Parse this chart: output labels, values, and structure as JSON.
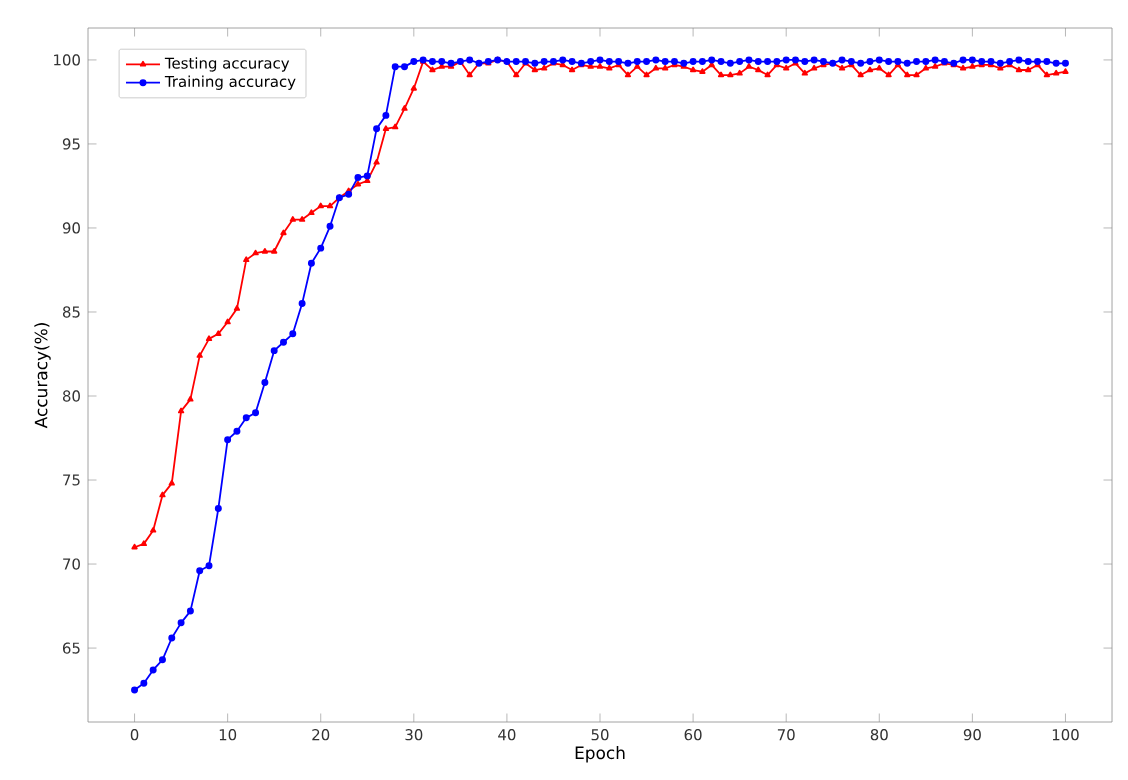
{
  "chart_data": {
    "type": "line",
    "xlabel": "Epoch",
    "ylabel": "Accuracy(%)",
    "x": [
      0,
      1,
      2,
      3,
      4,
      5,
      6,
      7,
      8,
      9,
      10,
      11,
      12,
      13,
      14,
      15,
      16,
      17,
      18,
      19,
      20,
      21,
      22,
      23,
      24,
      25,
      26,
      27,
      28,
      29,
      30,
      31,
      32,
      33,
      34,
      35,
      36,
      37,
      38,
      39,
      40,
      41,
      42,
      43,
      44,
      45,
      46,
      47,
      48,
      49,
      50,
      51,
      52,
      53,
      54,
      55,
      56,
      57,
      58,
      59,
      60,
      61,
      62,
      63,
      64,
      65,
      66,
      67,
      68,
      69,
      70,
      71,
      72,
      73,
      74,
      75,
      76,
      77,
      78,
      79,
      80,
      81,
      82,
      83,
      84,
      85,
      86,
      87,
      88,
      89,
      90,
      91,
      92,
      93,
      94,
      95,
      96,
      97,
      98,
      99,
      100
    ],
    "series": [
      {
        "name": "Testing accuracy",
        "color": "#ff0000",
        "marker": "triangle",
        "values": [
          71.0,
          71.2,
          72.0,
          74.1,
          74.8,
          79.1,
          79.8,
          82.4,
          83.4,
          83.7,
          84.4,
          85.2,
          88.1,
          88.5,
          88.6,
          88.6,
          89.7,
          90.5,
          90.5,
          90.9,
          91.3,
          91.3,
          91.8,
          92.2,
          92.6,
          92.8,
          93.9,
          95.9,
          96.0,
          97.1,
          98.3,
          99.9,
          99.4,
          99.6,
          99.6,
          99.9,
          99.1,
          99.8,
          99.8,
          100,
          99.9,
          99.1,
          99.8,
          99.4,
          99.5,
          99.8,
          99.7,
          99.4,
          99.7,
          99.6,
          99.6,
          99.5,
          99.7,
          99.1,
          99.6,
          99.1,
          99.5,
          99.5,
          99.7,
          99.6,
          99.4,
          99.3,
          99.7,
          99.1,
          99.1,
          99.2,
          99.6,
          99.4,
          99.1,
          99.7,
          99.5,
          99.8,
          99.2,
          99.5,
          99.7,
          99.8,
          99.5,
          99.7,
          99.1,
          99.4,
          99.5,
          99.1,
          99.7,
          99.1,
          99.1,
          99.5,
          99.6,
          99.8,
          99.7,
          99.5,
          99.6,
          99.7,
          99.7,
          99.5,
          99.7,
          99.4,
          99.4,
          99.7,
          99.1,
          99.2,
          99.3
        ]
      },
      {
        "name": "Training accuracy",
        "color": "#0000ff",
        "marker": "circle",
        "values": [
          62.5,
          62.9,
          63.7,
          64.3,
          65.6,
          66.5,
          67.2,
          69.6,
          69.9,
          73.3,
          77.4,
          77.9,
          78.7,
          79.0,
          80.8,
          82.7,
          83.2,
          83.7,
          85.5,
          87.9,
          88.8,
          90.1,
          91.8,
          92.0,
          93.0,
          93.1,
          95.9,
          96.7,
          99.6,
          99.6,
          99.9,
          100,
          99.9,
          99.9,
          99.8,
          99.9,
          100,
          99.8,
          99.9,
          100,
          99.9,
          99.9,
          99.9,
          99.8,
          99.9,
          99.9,
          100,
          99.9,
          99.8,
          99.9,
          100,
          99.9,
          99.9,
          99.8,
          99.9,
          99.9,
          100,
          99.9,
          99.9,
          99.8,
          99.9,
          99.9,
          100,
          99.9,
          99.8,
          99.9,
          100,
          99.9,
          99.9,
          99.9,
          100,
          100,
          99.9,
          100,
          99.9,
          99.8,
          100,
          99.9,
          99.8,
          99.9,
          100,
          99.9,
          99.9,
          99.8,
          99.9,
          99.9,
          100,
          99.9,
          99.8,
          100,
          100,
          99.9,
          99.9,
          99.8,
          99.9,
          100,
          99.9,
          99.9,
          99.9,
          99.8,
          99.8
        ]
      }
    ],
    "xlim": [
      -5,
      105
    ],
    "ylim": [
      60.6,
      101.9
    ],
    "xticks": [
      0,
      10,
      20,
      30,
      40,
      50,
      60,
      70,
      80,
      90,
      100
    ],
    "yticks": [
      65,
      70,
      75,
      80,
      85,
      90,
      95,
      100
    ],
    "legend": "top left",
    "grid": false,
    "line_style": "solid"
  }
}
